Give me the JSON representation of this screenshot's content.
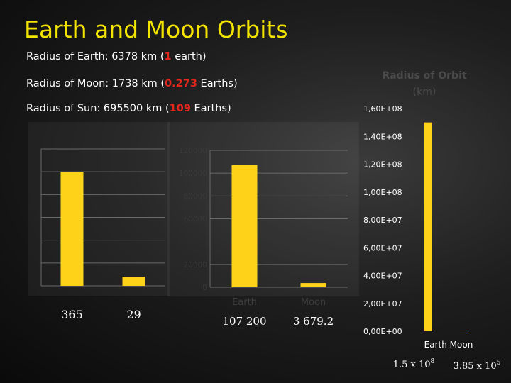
{
  "slide": {
    "title": "Earth and Moon Orbits",
    "radius_earth": {
      "prefix": "Radius of Earth: 6378 km (",
      "highlight": "1",
      "suffix": " earth)"
    },
    "radius_moon": {
      "prefix": "Radius of Moon: 1738 km (",
      "highlight": "0.273",
      "suffix": " Earths)"
    },
    "radius_sun": {
      "prefix": "Radius of Sun: 695500 km (",
      "highlight": "109",
      "suffix": " Earths)"
    },
    "colors": {
      "title": "#f2e300",
      "highlight": "#e3261c",
      "bar": "#ffd21a"
    }
  },
  "chart_data": [
    {
      "type": "bar",
      "title": "",
      "categories": [
        "",
        ""
      ],
      "values": [
        365,
        29
      ],
      "ylim": [
        0,
        440
      ],
      "grid": true,
      "value_labels": [
        "365",
        "29"
      ]
    },
    {
      "type": "bar",
      "title": "",
      "categories": [
        "Earth",
        "Moon"
      ],
      "values": [
        107200,
        3679.2
      ],
      "ylim": [
        0,
        120000
      ],
      "yticks": [
        {
          "value": 0,
          "label": "0"
        },
        {
          "value": 20000,
          "label": "20000"
        },
        {
          "value": 60000,
          "label": "60000"
        },
        {
          "value": 80000,
          "label": "80000"
        },
        {
          "value": 100000,
          "label": "100000"
        },
        {
          "value": 120000,
          "label": "120000"
        }
      ],
      "value_labels": [
        "107 200",
        "3 679.2"
      ],
      "grid": true
    },
    {
      "type": "bar",
      "title": "Radius of Orbit (km)",
      "title_lines": [
        "Radius of Orbit",
        "(km)"
      ],
      "categories": [
        "Earth",
        "Moon"
      ],
      "category_label_text": "Earth  Moon",
      "values": [
        150000000,
        385000
      ],
      "ylim": [
        0,
        160000000
      ],
      "yticks": [
        {
          "value": 0,
          "label": "0,00E+00"
        },
        {
          "value": 20000000,
          "label": "2,00E+07"
        },
        {
          "value": 40000000,
          "label": "4,00E+07"
        },
        {
          "value": 60000000,
          "label": "6,00E+07"
        },
        {
          "value": 80000000,
          "label": "8,00E+07"
        },
        {
          "value": 100000000,
          "label": "1,00E+08"
        },
        {
          "value": 120000000,
          "label": "1,20E+08"
        },
        {
          "value": 140000000,
          "label": "1,40E+08"
        },
        {
          "value": 160000000,
          "label": "1,60E+08"
        }
      ],
      "value_labels": [
        {
          "base": "1.5 x 10",
          "exp": "8"
        },
        {
          "base": "3.85 x 10",
          "exp": "5"
        }
      ],
      "grid": false
    }
  ]
}
